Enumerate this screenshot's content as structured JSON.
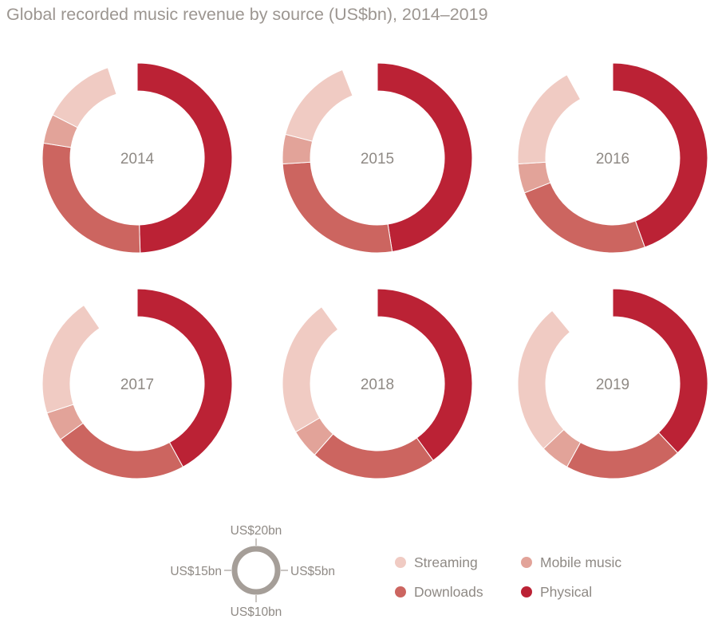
{
  "chart_data": {
    "type": "donut",
    "title": "Global recorded music revenue by source (US$bn), 2014–2019",
    "unit": "US$bn",
    "scale": {
      "full_circle_value": 20,
      "labels": {
        "top": "US$20bn",
        "right": "US$5bn",
        "bottom": "US$10bn",
        "left": "US$15bn"
      }
    },
    "series_order": [
      "Physical",
      "Downloads",
      "Mobile music",
      "Streaming"
    ],
    "series": [
      {
        "name": "Streaming",
        "color": "#f0cbc3"
      },
      {
        "name": "Mobile music",
        "color": "#e2a399"
      },
      {
        "name": "Downloads",
        "color": "#cc6560"
      },
      {
        "name": "Physical",
        "color": "#bb2235"
      }
    ],
    "legend": [
      {
        "name": "Streaming",
        "color": "#f0cbc3"
      },
      {
        "name": "Mobile music",
        "color": "#e2a399"
      },
      {
        "name": "Downloads",
        "color": "#cc6560"
      },
      {
        "name": "Physical",
        "color": "#bb2235"
      }
    ],
    "charts": [
      {
        "year": "2014",
        "values": {
          "Physical": 9.9,
          "Downloads": 5.6,
          "Mobile music": 1.0,
          "Streaming": 2.5
        }
      },
      {
        "year": "2015",
        "values": {
          "Physical": 9.5,
          "Downloads": 5.3,
          "Mobile music": 1.0,
          "Streaming": 3.0
        }
      },
      {
        "year": "2016",
        "values": {
          "Physical": 8.9,
          "Downloads": 4.9,
          "Mobile music": 1.0,
          "Streaming": 3.6
        }
      },
      {
        "year": "2017",
        "values": {
          "Physical": 8.4,
          "Downloads": 4.6,
          "Mobile music": 1.0,
          "Streaming": 4.1
        }
      },
      {
        "year": "2018",
        "values": {
          "Physical": 8.0,
          "Downloads": 4.3,
          "Mobile music": 1.0,
          "Streaming": 4.7
        }
      },
      {
        "year": "2019",
        "values": {
          "Physical": 7.6,
          "Downloads": 4.0,
          "Mobile music": 1.0,
          "Streaming": 5.2
        }
      }
    ]
  }
}
